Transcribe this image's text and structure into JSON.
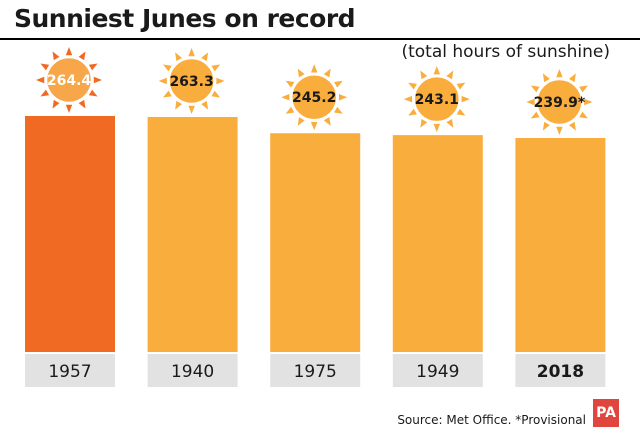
{
  "title": "Sunniest Junes on record",
  "subtitle": "(total hours of sunshine)",
  "source": "Source: Met Office. *Provisional",
  "logo": "PA",
  "colors": {
    "highlight_bar": "#f06a23",
    "bar": "#f9ad3d",
    "label_box": "#e2e2e2",
    "sun_fill": "#f9ad3d",
    "sun_fill_highlight": "#f7a64a",
    "logo": "#e0463e"
  },
  "chart_data": {
    "type": "bar",
    "title": "Sunniest Junes on record",
    "subtitle": "(total hours of sunshine)",
    "categories": [
      "1957",
      "1940",
      "1975",
      "1949",
      "2018"
    ],
    "values": [
      264.4,
      263.3,
      245.2,
      243.1,
      239.9
    ],
    "value_labels": [
      "264.4",
      "263.3",
      "245.2",
      "243.1",
      "239.9*"
    ],
    "highlight_index": 0,
    "bold_category_index": 4,
    "ylim": [
      0,
      264.4
    ],
    "xlabel": "",
    "ylabel": "",
    "grid": false,
    "legend": "none"
  }
}
